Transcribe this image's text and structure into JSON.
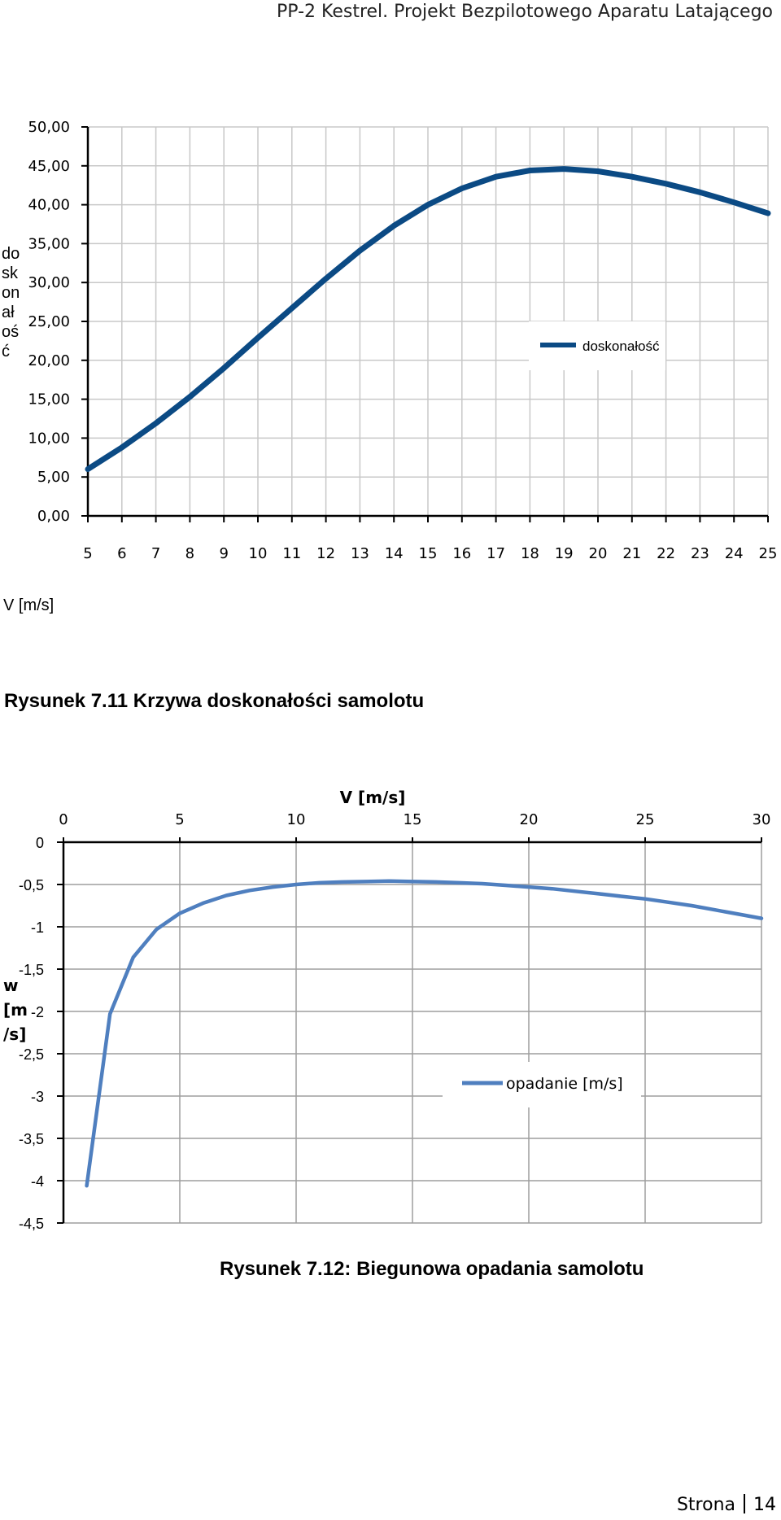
{
  "header": {
    "title": "PP-2 Kestrel. Projekt Bezpilotowego Aparatu Latającego"
  },
  "chart_data": [
    {
      "type": "line",
      "title": "",
      "xlabel": "V [m/s]",
      "ylabel": "doskonałość",
      "ylabel_lines": [
        "do",
        "sk",
        "on",
        "ał",
        "oś",
        "ć"
      ],
      "x": [
        5,
        6,
        7,
        8,
        9,
        10,
        11,
        12,
        13,
        14,
        15,
        16,
        17,
        18,
        19,
        20,
        21,
        22,
        23,
        24,
        25
      ],
      "x_tick_labels": [
        "5",
        "6",
        "7",
        "8",
        "9",
        "10",
        "11",
        "12",
        "13",
        "14",
        "15",
        "16",
        "17",
        "18",
        "19",
        "20",
        "21",
        "22",
        "23",
        "24",
        "25"
      ],
      "y_tick_labels": [
        "0,00",
        "5,00",
        "10,00",
        "15,00",
        "20,00",
        "25,00",
        "30,00",
        "35,00",
        "40,00",
        "45,00",
        "50,00"
      ],
      "ylim": [
        0,
        50
      ],
      "grid": true,
      "legend_position": "right",
      "series": [
        {
          "name": "doskonałość",
          "color": "#0b4a84",
          "values": [
            6.0,
            8.8,
            11.9,
            15.3,
            19.0,
            22.9,
            26.7,
            30.5,
            34.1,
            37.3,
            40.0,
            42.1,
            43.6,
            44.4,
            44.6,
            44.3,
            43.6,
            42.7,
            41.6,
            40.3,
            38.9
          ]
        }
      ]
    },
    {
      "type": "line",
      "title": "",
      "xlabel": "V [m/s]",
      "ylabel": "w [m/s]",
      "ylabel_lines": [
        "w",
        "[m",
        "/s]"
      ],
      "x": [
        1,
        2,
        3,
        4,
        5,
        6,
        7,
        8,
        9,
        10,
        11,
        12,
        13,
        14,
        15,
        16,
        17,
        18,
        19,
        20,
        21,
        22,
        23,
        24,
        25,
        26,
        27,
        28,
        29,
        30
      ],
      "x_tick_labels": [
        "0",
        "5",
        "10",
        "15",
        "20",
        "25",
        "30"
      ],
      "x_ticks": [
        0,
        5,
        10,
        15,
        20,
        25,
        30
      ],
      "xlim": [
        0,
        30
      ],
      "x_axis_position": "top",
      "y_tick_labels": [
        "0",
        "-0,5",
        "-1",
        "-1,5",
        "-2",
        "-2,5",
        "-3",
        "-3,5",
        "-4",
        "-4,5"
      ],
      "ylim": [
        -4.5,
        0
      ],
      "grid": true,
      "legend_position": "right",
      "series": [
        {
          "name": "opadanie [m/s]",
          "color": "#4f7fbf",
          "values": [
            -4.06,
            -2.03,
            -1.36,
            -1.03,
            -0.84,
            -0.72,
            -0.63,
            -0.57,
            -0.53,
            -0.5,
            -0.48,
            -0.47,
            -0.465,
            -0.46,
            -0.465,
            -0.47,
            -0.48,
            -0.49,
            -0.51,
            -0.53,
            -0.55,
            -0.58,
            -0.61,
            -0.64,
            -0.67,
            -0.71,
            -0.75,
            -0.8,
            -0.85,
            -0.9
          ]
        }
      ]
    }
  ],
  "captions": {
    "fig1": "Rysunek 7.11 Krzywa doskonałości samolotu",
    "fig2": "Rysunek 7.12: Biegunowa opadania samolotu"
  },
  "footer": {
    "page_label": "Strona",
    "page_number": "14"
  }
}
